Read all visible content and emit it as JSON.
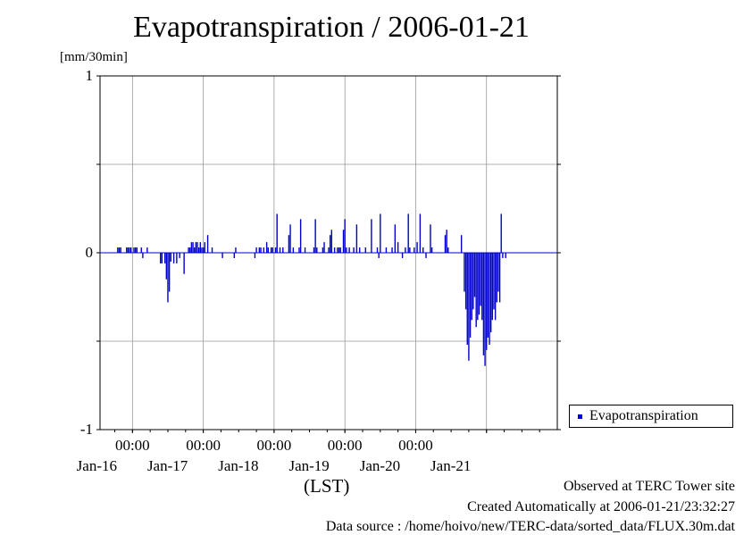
{
  "chart_data": {
    "type": "bar",
    "title": "Evapotranspiration / 2006-01-21",
    "ylabel": "[mm/30min]",
    "xlabel": "(LST)",
    "ylim": [
      -1,
      1
    ],
    "y_ticks": [
      "1",
      "0",
      "-1"
    ],
    "x_range": [
      "2006-01-15T13:00",
      "2006-01-21T24:00"
    ],
    "x_ticks": [
      {
        "at": "2006-01-16T00:00",
        "time": "00:00",
        "date": "Jan-16"
      },
      {
        "at": "2006-01-17T00:00",
        "time": "00:00",
        "date": "Jan-17"
      },
      {
        "at": "2006-01-18T00:00",
        "time": "00:00",
        "date": "Jan-18"
      },
      {
        "at": "2006-01-19T00:00",
        "time": "00:00",
        "date": "Jan-19"
      },
      {
        "at": "2006-01-20T00:00",
        "time": "00:00",
        "date": "Jan-20"
      },
      {
        "at": "2006-01-21T00:00",
        "time": "",
        "date": "Jan-21"
      }
    ],
    "grid": true,
    "legend": {
      "position": "right",
      "entries": [
        "Evapotranspiration"
      ]
    },
    "series_color": "#0000cc",
    "series": [
      {
        "name": "Evapotranspiration",
        "points": [
          [
            "2006-01-15T19:00",
            0.03
          ],
          [
            "2006-01-15T19:30",
            0.03
          ],
          [
            "2006-01-15T20:00",
            0.03
          ],
          [
            "2006-01-15T22:00",
            0.03
          ],
          [
            "2006-01-15T22:30",
            0.03
          ],
          [
            "2006-01-15T23:00",
            0.03
          ],
          [
            "2006-01-15T23:30",
            0.03
          ],
          [
            "2006-01-16T00:30",
            0.03
          ],
          [
            "2006-01-16T01:00",
            0.03
          ],
          [
            "2006-01-16T01:30",
            0.03
          ],
          [
            "2006-01-16T03:00",
            0.03
          ],
          [
            "2006-01-16T03:30",
            -0.03
          ],
          [
            "2006-01-16T05:00",
            0.03
          ],
          [
            "2006-01-16T09:30",
            -0.06
          ],
          [
            "2006-01-16T10:00",
            -0.06
          ],
          [
            "2006-01-16T11:00",
            -0.06
          ],
          [
            "2006-01-16T11:30",
            -0.15
          ],
          [
            "2006-01-16T12:00",
            -0.28
          ],
          [
            "2006-01-16T12:30",
            -0.22
          ],
          [
            "2006-01-16T13:00",
            -0.05
          ],
          [
            "2006-01-16T14:00",
            -0.06
          ],
          [
            "2006-01-16T15:00",
            -0.06
          ],
          [
            "2006-01-16T16:00",
            -0.03
          ],
          [
            "2006-01-16T17:30",
            -0.12
          ],
          [
            "2006-01-16T19:00",
            0.03
          ],
          [
            "2006-01-16T19:30",
            0.03
          ],
          [
            "2006-01-16T20:00",
            0.06
          ],
          [
            "2006-01-16T20:30",
            0.06
          ],
          [
            "2006-01-16T21:00",
            0.03
          ],
          [
            "2006-01-16T21:30",
            0.06
          ],
          [
            "2006-01-16T22:00",
            0.06
          ],
          [
            "2006-01-16T22:30",
            0.03
          ],
          [
            "2006-01-16T23:00",
            0.06
          ],
          [
            "2006-01-16T23:30",
            0.03
          ],
          [
            "2006-01-17T00:00",
            0.03
          ],
          [
            "2006-01-17T00:30",
            0.06
          ],
          [
            "2006-01-17T01:30",
            0.1
          ],
          [
            "2006-01-17T03:00",
            0.03
          ],
          [
            "2006-01-17T06:30",
            -0.03
          ],
          [
            "2006-01-17T10:30",
            -0.03
          ],
          [
            "2006-01-17T11:00",
            0.03
          ],
          [
            "2006-01-17T17:30",
            -0.03
          ],
          [
            "2006-01-17T18:00",
            0.03
          ],
          [
            "2006-01-17T19:00",
            0.03
          ],
          [
            "2006-01-17T19:30",
            0.03
          ],
          [
            "2006-01-17T20:30",
            0.03
          ],
          [
            "2006-01-17T21:30",
            0.06
          ],
          [
            "2006-01-17T22:00",
            0.03
          ],
          [
            "2006-01-17T23:00",
            0.03
          ],
          [
            "2006-01-17T23:30",
            0.03
          ],
          [
            "2006-01-18T00:30",
            0.03
          ],
          [
            "2006-01-18T01:00",
            0.22
          ],
          [
            "2006-01-18T02:00",
            0.03
          ],
          [
            "2006-01-18T03:00",
            0.03
          ],
          [
            "2006-01-18T05:00",
            0.1
          ],
          [
            "2006-01-18T05:30",
            0.16
          ],
          [
            "2006-01-18T06:30",
            0.03
          ],
          [
            "2006-01-18T08:30",
            0.03
          ],
          [
            "2006-01-18T09:00",
            0.19
          ],
          [
            "2006-01-18T10:30",
            0.03
          ],
          [
            "2006-01-18T13:30",
            0.03
          ],
          [
            "2006-01-18T14:00",
            0.19
          ],
          [
            "2006-01-18T14:30",
            0.03
          ],
          [
            "2006-01-18T16:30",
            0.03
          ],
          [
            "2006-01-18T17:00",
            0.06
          ],
          [
            "2006-01-18T18:30",
            0.03
          ],
          [
            "2006-01-18T19:00",
            0.1
          ],
          [
            "2006-01-18T19:30",
            0.13
          ],
          [
            "2006-01-18T20:30",
            0.03
          ],
          [
            "2006-01-18T21:30",
            0.03
          ],
          [
            "2006-01-18T22:00",
            0.03
          ],
          [
            "2006-01-18T22:30",
            0.03
          ],
          [
            "2006-01-18T23:30",
            0.13
          ],
          [
            "2006-01-19T00:00",
            0.19
          ],
          [
            "2006-01-19T00:30",
            0.03
          ],
          [
            "2006-01-19T01:30",
            0.03
          ],
          [
            "2006-01-19T03:00",
            0.03
          ],
          [
            "2006-01-19T04:00",
            0.16
          ],
          [
            "2006-01-19T05:00",
            0.03
          ],
          [
            "2006-01-19T07:00",
            0.03
          ],
          [
            "2006-01-19T09:00",
            0.19
          ],
          [
            "2006-01-19T11:00",
            0.03
          ],
          [
            "2006-01-19T11:30",
            -0.03
          ],
          [
            "2006-01-19T12:00",
            0.22
          ],
          [
            "2006-01-19T14:00",
            0.03
          ],
          [
            "2006-01-19T16:00",
            0.03
          ],
          [
            "2006-01-19T17:00",
            0.16
          ],
          [
            "2006-01-19T18:00",
            0.06
          ],
          [
            "2006-01-19T19:30",
            -0.03
          ],
          [
            "2006-01-19T20:30",
            0.03
          ],
          [
            "2006-01-19T21:30",
            0.22
          ],
          [
            "2006-01-19T22:00",
            0.03
          ],
          [
            "2006-01-19T23:30",
            0.03
          ],
          [
            "2006-01-20T00:30",
            0.06
          ],
          [
            "2006-01-20T01:30",
            0.22
          ],
          [
            "2006-01-20T02:30",
            0.03
          ],
          [
            "2006-01-20T03:30",
            -0.03
          ],
          [
            "2006-01-20T05:00",
            0.16
          ],
          [
            "2006-01-20T05:30",
            0.03
          ],
          [
            "2006-01-20T10:00",
            0.1
          ],
          [
            "2006-01-20T10:30",
            0.13
          ],
          [
            "2006-01-20T11:00",
            0.03
          ],
          [
            "2006-01-20T15:30",
            0.1
          ],
          [
            "2006-01-20T16:30",
            -0.22
          ],
          [
            "2006-01-20T17:00",
            -0.32
          ],
          [
            "2006-01-20T17:30",
            -0.52
          ],
          [
            "2006-01-20T18:00",
            -0.61
          ],
          [
            "2006-01-20T18:30",
            -0.48
          ],
          [
            "2006-01-20T19:00",
            -0.38
          ],
          [
            "2006-01-20T19:30",
            -0.32
          ],
          [
            "2006-01-20T20:00",
            -0.25
          ],
          [
            "2006-01-20T20:30",
            -0.42
          ],
          [
            "2006-01-20T21:00",
            -0.38
          ],
          [
            "2006-01-20T21:30",
            -0.35
          ],
          [
            "2006-01-20T22:00",
            -0.3
          ],
          [
            "2006-01-20T22:30",
            -0.38
          ],
          [
            "2006-01-20T23:00",
            -0.58
          ],
          [
            "2006-01-20T23:30",
            -0.64
          ],
          [
            "2006-01-21T00:00",
            -0.55
          ],
          [
            "2006-01-21T00:30",
            -0.48
          ],
          [
            "2006-01-21T01:00",
            -0.52
          ],
          [
            "2006-01-21T01:30",
            -0.45
          ],
          [
            "2006-01-21T02:00",
            -0.38
          ],
          [
            "2006-01-21T02:30",
            -0.32
          ],
          [
            "2006-01-21T03:00",
            -0.38
          ],
          [
            "2006-01-21T03:30",
            -0.28
          ],
          [
            "2006-01-21T04:00",
            -0.22
          ],
          [
            "2006-01-21T04:30",
            -0.28
          ],
          [
            "2006-01-21T05:00",
            0.22
          ],
          [
            "2006-01-21T05:30",
            -0.03
          ],
          [
            "2006-01-21T06:30",
            -0.03
          ]
        ]
      }
    ]
  },
  "footer": {
    "site": "Observed at TERC Tower site",
    "created": "Created Automatically at 2006-01-21/23:32:27",
    "source": "Data source : /home/hoivo/new/TERC-data/sorted_data/FLUX.30m.dat"
  }
}
